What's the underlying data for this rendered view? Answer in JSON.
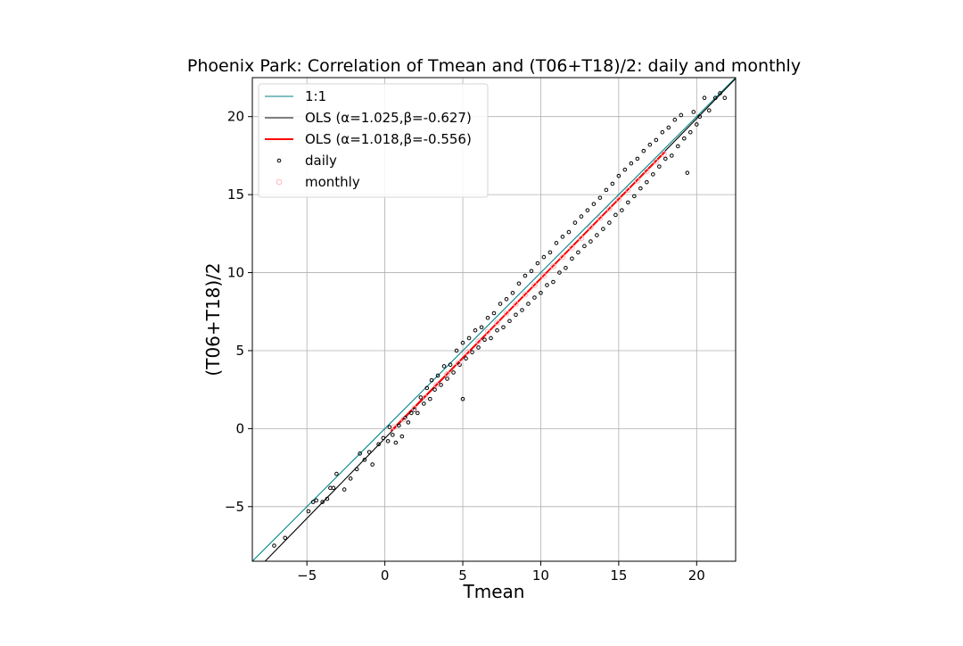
{
  "chart_data": {
    "type": "scatter",
    "title": "Phoenix Park: Correlation of Tmean and (T06+T18)/2: daily and monthly",
    "xlabel": "Tmean",
    "ylabel": "(T06+T18)/2",
    "xlim": [
      -8.5,
      22.5
    ],
    "ylim": [
      -8.5,
      22.5
    ],
    "xticks": [
      -5,
      0,
      5,
      10,
      15,
      20
    ],
    "yticks": [
      -5,
      0,
      5,
      10,
      15,
      20
    ],
    "xtick_labels": [
      "−5",
      "0",
      "5",
      "10",
      "15",
      "20"
    ],
    "ytick_labels": [
      "−5",
      "0",
      "5",
      "10",
      "15",
      "20"
    ],
    "grid": true,
    "legend_position": "top-left",
    "lines": [
      {
        "name": "1:1",
        "slope": 1.0,
        "intercept": 0.0,
        "x_range": [
          -8.5,
          22.5
        ],
        "color": "#008080"
      },
      {
        "name": "OLS (α=1.025,β=-0.627)",
        "slope": 1.025,
        "intercept": -0.627,
        "x_range": [
          -8.5,
          22.5
        ],
        "color": "#000000"
      },
      {
        "name": "OLS (α=1.018,β=-0.556)",
        "slope": 1.018,
        "intercept": -0.556,
        "x_range": [
          0.4,
          18.0
        ],
        "color": "#ff0000"
      }
    ],
    "series": [
      {
        "name": "daily",
        "marker": "dot",
        "color": "#000000",
        "points": [
          [
            -7.1,
            -7.5
          ],
          [
            -6.4,
            -7.0
          ],
          [
            -4.9,
            -5.3
          ],
          [
            -4.6,
            -4.7
          ],
          [
            -4.4,
            -4.6
          ],
          [
            -4.0,
            -4.7
          ],
          [
            -3.7,
            -4.5
          ],
          [
            -3.5,
            -3.8
          ],
          [
            -3.3,
            -3.8
          ],
          [
            -3.1,
            -2.9
          ],
          [
            -2.6,
            -3.9
          ],
          [
            -2.2,
            -3.2
          ],
          [
            -1.8,
            -2.6
          ],
          [
            -1.6,
            -1.6
          ],
          [
            -1.3,
            -2.0
          ],
          [
            -1.0,
            -1.5
          ],
          [
            -0.8,
            -2.3
          ],
          [
            -0.4,
            -1.0
          ],
          [
            -0.1,
            -0.6
          ],
          [
            0.2,
            -0.8
          ],
          [
            0.3,
            0.1
          ],
          [
            0.5,
            -0.4
          ],
          [
            0.7,
            -0.9
          ],
          [
            0.9,
            0.2
          ],
          [
            1.1,
            -0.5
          ],
          [
            1.3,
            0.7
          ],
          [
            1.5,
            0.4
          ],
          [
            1.7,
            1.0
          ],
          [
            1.9,
            1.2
          ],
          [
            2.1,
            1.0
          ],
          [
            2.3,
            2.0
          ],
          [
            2.5,
            1.6
          ],
          [
            2.7,
            2.6
          ],
          [
            2.9,
            1.9
          ],
          [
            3.0,
            3.1
          ],
          [
            3.2,
            2.5
          ],
          [
            3.4,
            3.4
          ],
          [
            3.6,
            2.8
          ],
          [
            3.8,
            4.0
          ],
          [
            4.0,
            3.2
          ],
          [
            4.2,
            4.1
          ],
          [
            4.4,
            3.6
          ],
          [
            4.6,
            5.0
          ],
          [
            4.8,
            4.1
          ],
          [
            5.0,
            5.5
          ],
          [
            5.0,
            1.9
          ],
          [
            5.2,
            4.5
          ],
          [
            5.4,
            5.8
          ],
          [
            5.6,
            4.9
          ],
          [
            5.8,
            6.3
          ],
          [
            6.0,
            5.2
          ],
          [
            6.2,
            6.5
          ],
          [
            6.4,
            5.7
          ],
          [
            6.6,
            7.1
          ],
          [
            6.8,
            5.8
          ],
          [
            7.0,
            7.4
          ],
          [
            7.2,
            6.3
          ],
          [
            7.4,
            8.0
          ],
          [
            7.6,
            6.5
          ],
          [
            7.8,
            8.3
          ],
          [
            8.0,
            6.9
          ],
          [
            8.2,
            8.7
          ],
          [
            8.4,
            7.3
          ],
          [
            8.6,
            9.3
          ],
          [
            8.8,
            7.6
          ],
          [
            9.0,
            9.8
          ],
          [
            9.2,
            8.0
          ],
          [
            9.4,
            10.1
          ],
          [
            9.6,
            8.4
          ],
          [
            9.8,
            10.6
          ],
          [
            10.0,
            8.7
          ],
          [
            10.2,
            11.0
          ],
          [
            10.4,
            9.2
          ],
          [
            10.6,
            11.3
          ],
          [
            10.8,
            9.4
          ],
          [
            11.0,
            11.9
          ],
          [
            11.2,
            10.0
          ],
          [
            11.4,
            12.3
          ],
          [
            11.6,
            10.3
          ],
          [
            11.8,
            12.6
          ],
          [
            12.0,
            10.9
          ],
          [
            12.2,
            13.2
          ],
          [
            12.4,
            11.3
          ],
          [
            12.6,
            13.6
          ],
          [
            12.8,
            11.7
          ],
          [
            13.0,
            14.0
          ],
          [
            13.2,
            12.0
          ],
          [
            13.4,
            14.4
          ],
          [
            13.6,
            12.4
          ],
          [
            13.8,
            14.8
          ],
          [
            14.0,
            12.8
          ],
          [
            14.2,
            15.3
          ],
          [
            14.4,
            13.2
          ],
          [
            14.6,
            15.7
          ],
          [
            14.8,
            13.7
          ],
          [
            15.0,
            16.2
          ],
          [
            15.2,
            14.0
          ],
          [
            15.4,
            16.6
          ],
          [
            15.6,
            14.5
          ],
          [
            15.8,
            17.0
          ],
          [
            16.0,
            14.9
          ],
          [
            16.2,
            17.3
          ],
          [
            16.4,
            15.4
          ],
          [
            16.6,
            17.8
          ],
          [
            16.8,
            15.8
          ],
          [
            17.0,
            18.2
          ],
          [
            17.2,
            16.3
          ],
          [
            17.4,
            18.5
          ],
          [
            17.6,
            16.8
          ],
          [
            17.8,
            19.0
          ],
          [
            18.0,
            17.3
          ],
          [
            18.2,
            19.3
          ],
          [
            18.4,
            17.5
          ],
          [
            18.6,
            19.8
          ],
          [
            18.8,
            18.1
          ],
          [
            19.0,
            20.1
          ],
          [
            19.2,
            18.6
          ],
          [
            19.4,
            16.4
          ],
          [
            19.6,
            19.0
          ],
          [
            19.8,
            20.3
          ],
          [
            20.0,
            19.5
          ],
          [
            20.2,
            20.0
          ],
          [
            20.5,
            21.2
          ],
          [
            20.8,
            20.4
          ],
          [
            21.2,
            21.2
          ],
          [
            21.5,
            21.5
          ],
          [
            21.8,
            21.2
          ]
        ]
      },
      {
        "name": "monthly",
        "marker": "ring",
        "color": "#ffb6c1",
        "points": [
          [
            0.6,
            0.1
          ],
          [
            1.2,
            0.6
          ],
          [
            1.9,
            1.3
          ],
          [
            2.6,
            2.0
          ],
          [
            3.3,
            2.8
          ],
          [
            4.0,
            3.5
          ],
          [
            4.7,
            4.2
          ],
          [
            5.3,
            4.9
          ],
          [
            6.0,
            5.6
          ],
          [
            6.6,
            6.2
          ],
          [
            7.2,
            6.8
          ],
          [
            7.8,
            7.4
          ],
          [
            8.4,
            8.0
          ],
          [
            9.0,
            8.6
          ],
          [
            9.6,
            9.2
          ],
          [
            10.2,
            9.8
          ],
          [
            10.8,
            10.4
          ],
          [
            11.4,
            11.0
          ],
          [
            12.0,
            11.6
          ],
          [
            12.6,
            12.2
          ],
          [
            13.2,
            12.9
          ],
          [
            13.8,
            13.5
          ],
          [
            14.4,
            14.1
          ],
          [
            15.0,
            14.7
          ],
          [
            15.6,
            15.3
          ],
          [
            16.2,
            15.9
          ],
          [
            16.8,
            16.5
          ],
          [
            17.4,
            17.1
          ],
          [
            17.9,
            17.6
          ]
        ]
      }
    ],
    "legend": [
      {
        "label": "1:1",
        "kind": "line",
        "color": "#008080"
      },
      {
        "label": "OLS (α=1.025,β=-0.627)",
        "kind": "line",
        "color": "#000000"
      },
      {
        "label": "OLS (α=1.018,β=-0.556)",
        "kind": "line-thick",
        "color": "#ff0000"
      },
      {
        "label": "daily",
        "kind": "dot",
        "color": "#000000"
      },
      {
        "label": "monthly",
        "kind": "ring",
        "color": "#ffb6c1"
      }
    ]
  }
}
